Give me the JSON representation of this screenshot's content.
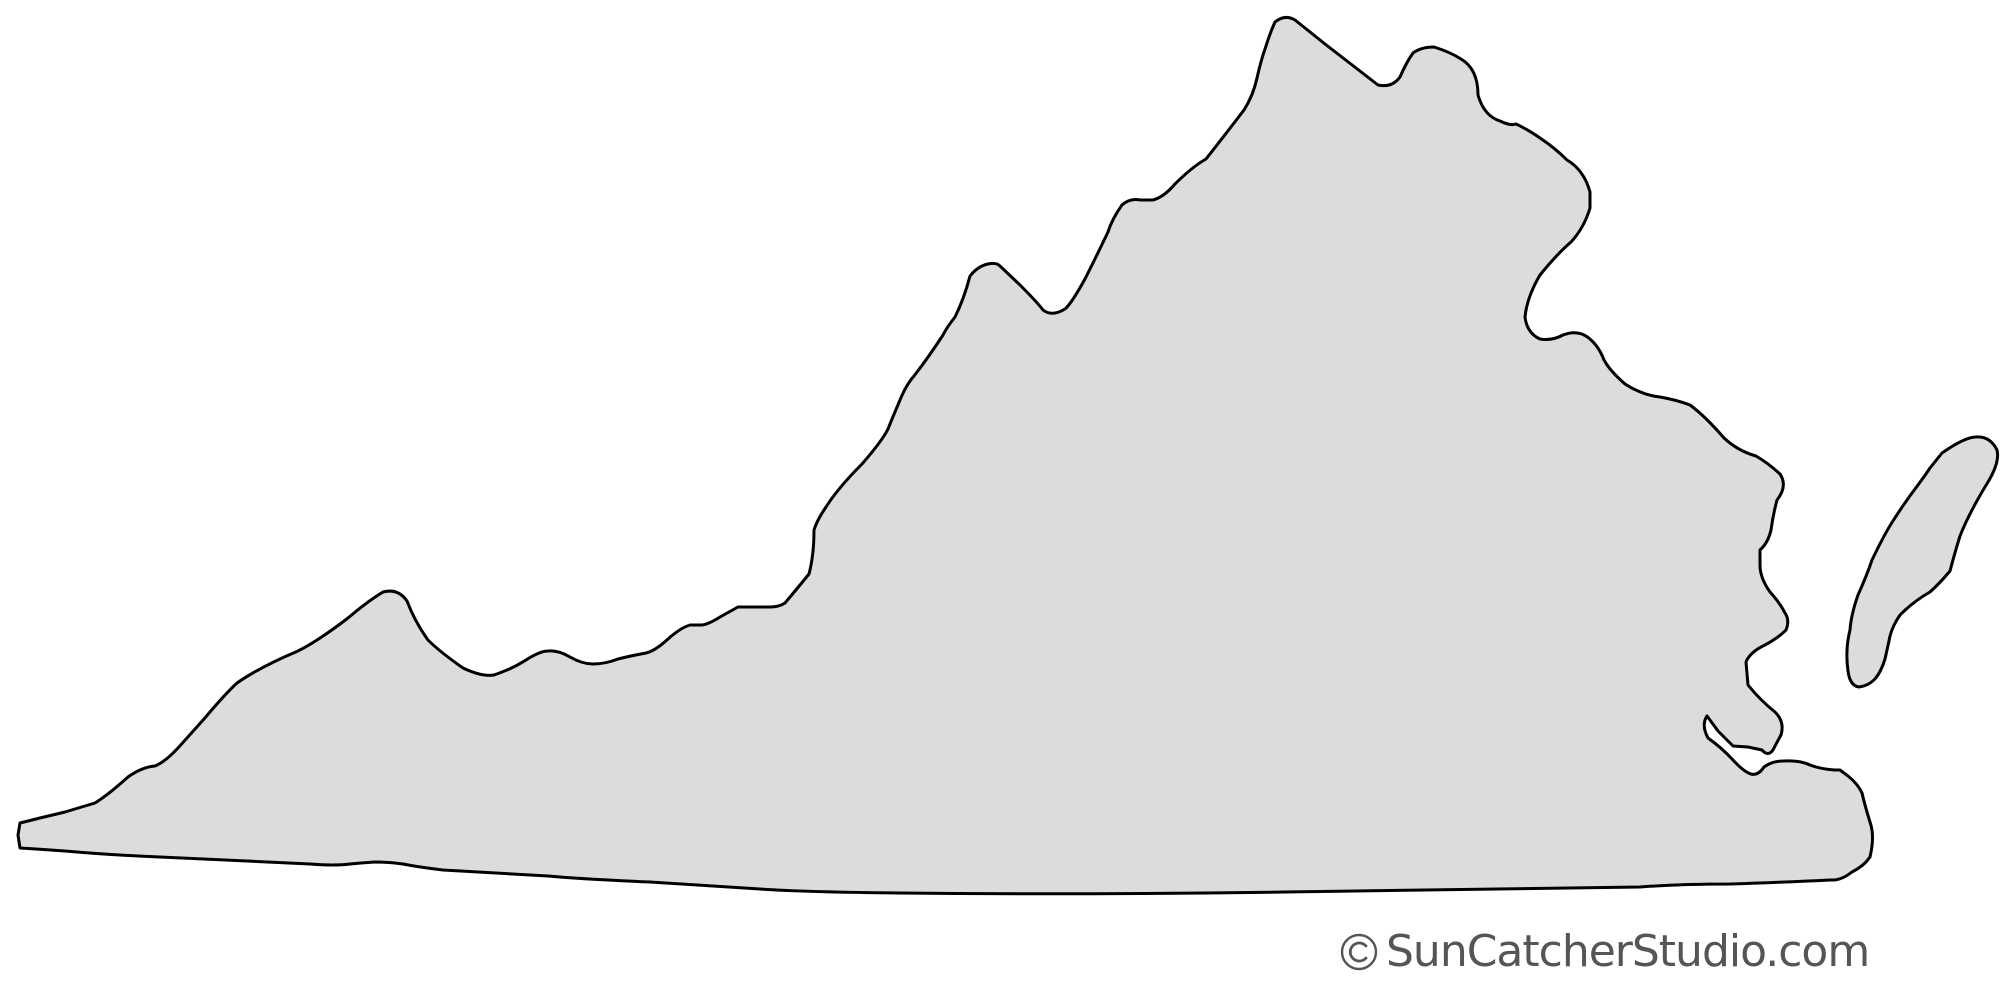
{
  "map": {
    "region": "Virginia",
    "fill_color": "#dcdcdc",
    "stroke_color": "#000000"
  },
  "watermark": {
    "symbol": "©",
    "text": "SunCatcherStudio.com",
    "color": "#555555"
  }
}
